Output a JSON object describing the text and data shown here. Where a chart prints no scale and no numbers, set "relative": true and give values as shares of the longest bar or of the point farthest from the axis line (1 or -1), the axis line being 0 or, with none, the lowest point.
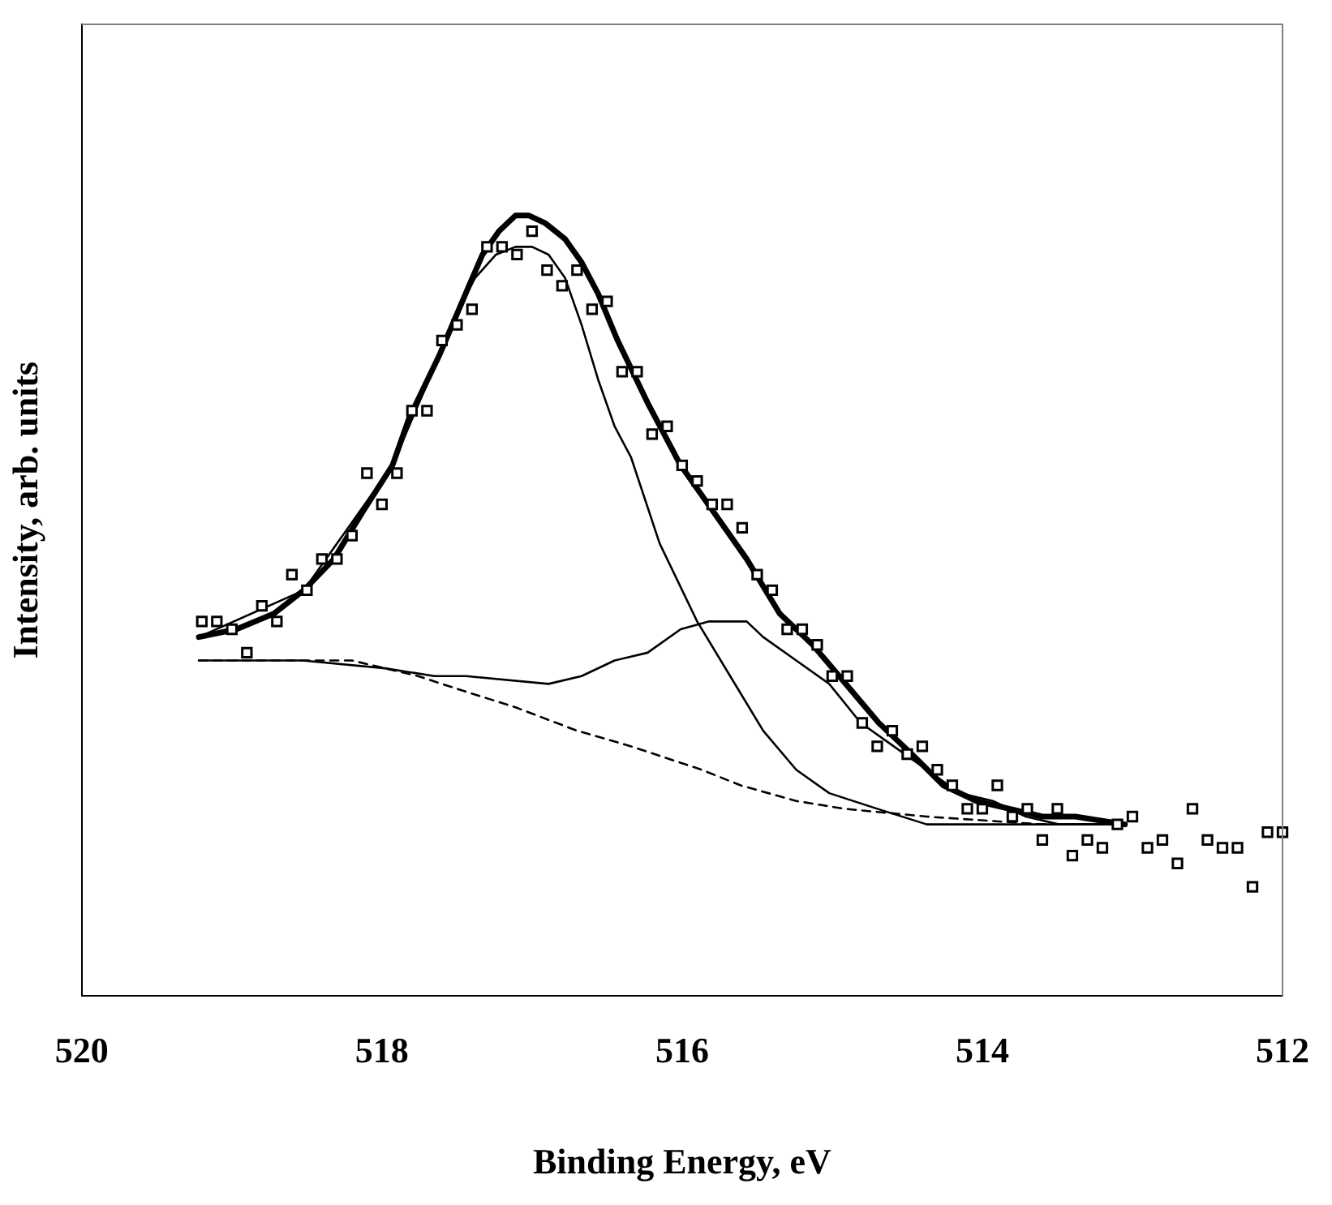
{
  "chart_data": {
    "type": "scatter",
    "xlabel": "Binding Energy, eV",
    "ylabel": "Intensity, arb. units",
    "relative": true,
    "xlim": [
      520,
      512
    ],
    "xticks": [
      520,
      518,
      516,
      514,
      512
    ],
    "grid": false,
    "legend": false,
    "series": [
      {
        "type": "scatter",
        "marker": "square",
        "color": "#000000",
        "x": [
          519.2,
          519.1,
          519.0,
          518.9,
          518.8,
          518.7,
          518.6,
          518.5,
          518.4,
          518.3,
          518.2,
          518.1,
          518.0,
          517.9,
          517.8,
          517.7,
          517.6,
          517.5,
          517.4,
          517.3,
          517.2,
          517.1,
          517.0,
          516.9,
          516.8,
          516.7,
          516.6,
          516.5,
          516.4,
          516.3,
          516.2,
          516.1,
          516.0,
          515.9,
          515.8,
          515.7,
          515.6,
          515.5,
          515.4,
          515.3,
          515.2,
          515.1,
          515.0,
          514.9,
          514.8,
          514.7,
          514.6,
          514.5,
          514.4,
          514.3,
          514.2,
          514.1,
          514.0,
          513.9,
          513.8,
          513.7,
          513.6,
          513.5,
          513.4,
          513.3,
          513.2,
          513.1,
          513.0,
          512.9,
          512.8,
          512.7,
          512.6,
          512.5,
          512.4,
          512.3,
          512.2,
          512.1,
          512.0
        ],
        "values": [
          0.48,
          0.48,
          0.47,
          0.44,
          0.5,
          0.48,
          0.54,
          0.52,
          0.56,
          0.56,
          0.59,
          0.67,
          0.63,
          0.67,
          0.75,
          0.75,
          0.84,
          0.86,
          0.88,
          0.96,
          0.96,
          0.95,
          0.98,
          0.93,
          0.91,
          0.93,
          0.88,
          0.89,
          0.8,
          0.8,
          0.72,
          0.73,
          0.68,
          0.66,
          0.63,
          0.63,
          0.6,
          0.54,
          0.52,
          0.47,
          0.47,
          0.45,
          0.41,
          0.41,
          0.35,
          0.32,
          0.34,
          0.31,
          0.32,
          0.29,
          0.27,
          0.24,
          0.24,
          0.27,
          0.23,
          0.24,
          0.2,
          0.24,
          0.18,
          0.2,
          0.19,
          0.22,
          0.23,
          0.19,
          0.2,
          0.17,
          0.24,
          0.2,
          0.19,
          0.19,
          0.14,
          0.21,
          0.21
        ]
      },
      {
        "type": "line",
        "marker": "none",
        "line_style": "solid",
        "color": "#000000",
        "x": [
          519.22,
          518.97,
          518.72,
          518.52,
          518.32,
          518.13,
          517.93,
          517.82,
          517.62,
          517.42,
          517.33,
          517.22,
          517.11,
          517.02,
          516.91,
          516.78,
          516.67,
          516.56,
          516.43,
          516.23,
          516.01,
          515.79,
          515.57,
          515.35,
          515.13,
          514.91,
          514.69,
          514.47,
          514.26,
          514.04,
          513.82,
          513.6,
          513.38,
          513.05
        ],
        "values": [
          0.46,
          0.47,
          0.49,
          0.52,
          0.56,
          0.62,
          0.68,
          0.74,
          0.82,
          0.91,
          0.95,
          0.98,
          1.0,
          1.0,
          0.99,
          0.97,
          0.94,
          0.9,
          0.84,
          0.76,
          0.68,
          0.62,
          0.56,
          0.49,
          0.45,
          0.4,
          0.35,
          0.31,
          0.27,
          0.25,
          0.24,
          0.23,
          0.23,
          0.22
        ]
      },
      {
        "type": "line",
        "marker": "none",
        "line_style": "solid",
        "color": "#000000",
        "x": [
          519.22,
          518.52,
          517.93,
          517.62,
          517.49,
          517.38,
          517.24,
          517.11,
          517.0,
          516.89,
          516.78,
          516.67,
          516.56,
          516.45,
          516.34,
          516.15,
          515.9,
          515.68,
          515.46,
          515.24,
          515.02,
          514.7,
          514.37,
          513.93,
          513.05
        ],
        "values": [
          0.46,
          0.52,
          0.68,
          0.82,
          0.88,
          0.92,
          0.95,
          0.96,
          0.96,
          0.95,
          0.92,
          0.86,
          0.79,
          0.73,
          0.69,
          0.58,
          0.48,
          0.41,
          0.34,
          0.29,
          0.26,
          0.24,
          0.22,
          0.22,
          0.22
        ]
      },
      {
        "type": "line",
        "marker": "none",
        "line_style": "solid",
        "color": "#000000",
        "x": [
          519.22,
          518.53,
          517.98,
          517.65,
          517.44,
          516.89,
          516.67,
          516.45,
          516.23,
          516.01,
          515.82,
          515.72,
          515.57,
          515.46,
          515.24,
          515.02,
          514.81,
          514.59,
          514.37,
          514.15,
          513.93,
          513.71,
          513.49,
          513.05
        ],
        "values": [
          0.43,
          0.43,
          0.42,
          0.41,
          0.41,
          0.4,
          0.41,
          0.43,
          0.44,
          0.47,
          0.48,
          0.48,
          0.48,
          0.46,
          0.43,
          0.4,
          0.35,
          0.32,
          0.29,
          0.26,
          0.25,
          0.23,
          0.22,
          0.22
        ]
      },
      {
        "type": "line",
        "marker": "none",
        "line_style": "dashed",
        "color": "#000000",
        "x": [
          519.22,
          518.2,
          517.76,
          517.44,
          517.11,
          516.7,
          516.34,
          515.87,
          515.61,
          515.24,
          514.92,
          514.37,
          513.6,
          513.05
        ],
        "values": [
          0.43,
          0.43,
          0.41,
          0.39,
          0.37,
          0.34,
          0.32,
          0.29,
          0.27,
          0.25,
          0.24,
          0.23,
          0.22,
          0.22
        ]
      }
    ]
  }
}
